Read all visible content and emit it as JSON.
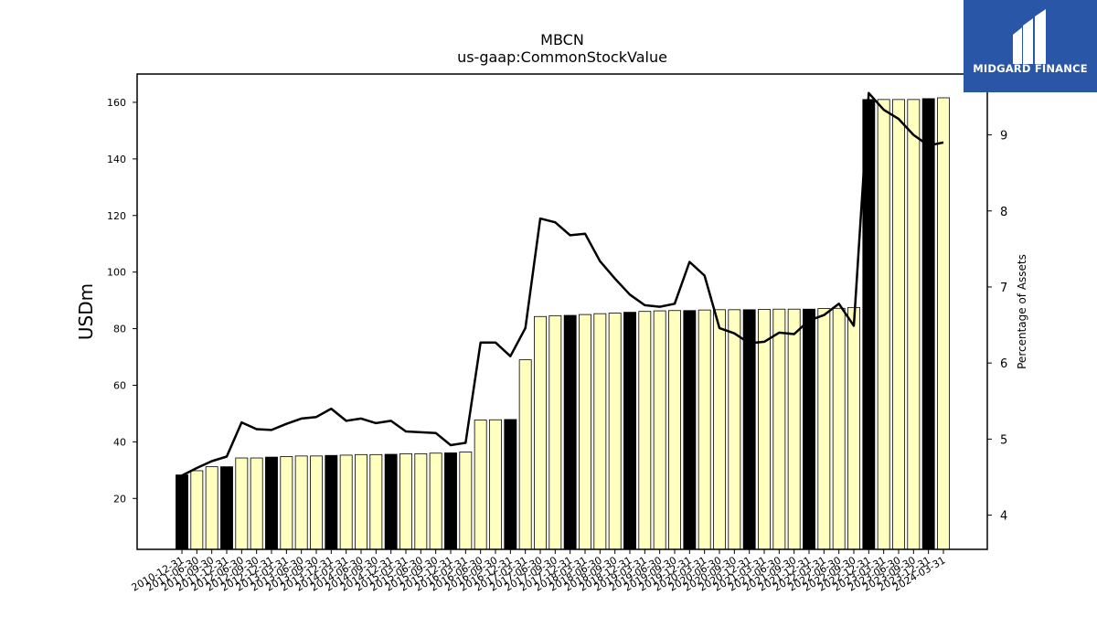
{
  "logo": {
    "text": "MIDGARD FINANCE",
    "icon": "midgard-finance-logo-icon",
    "background": "#2a56a8"
  },
  "chart_data": {
    "type": "bar",
    "title": "MBCN",
    "subtitle": "us-gaap:CommonStockValue",
    "ylabel": "USDm",
    "y2label": "Percentage of Assets",
    "ylim": [
      2,
      170
    ],
    "y2lim": [
      3.55,
      9.8
    ],
    "yticks": [
      20,
      40,
      60,
      80,
      100,
      120,
      140,
      160
    ],
    "y2ticks": [
      4,
      5,
      6,
      7,
      8,
      9
    ],
    "categories": [
      "2010-12-31",
      "2011-06-30",
      "2011-09-30",
      "2011-12-31",
      "2012-06-30",
      "2012-09-30",
      "2012-12-31",
      "2013-03-31",
      "2013-06-30",
      "2013-09-30",
      "2013-12-31",
      "2014-03-31",
      "2014-06-30",
      "2014-09-30",
      "2014-12-31",
      "2015-03-31",
      "2015-06-30",
      "2015-09-30",
      "2015-12-31",
      "2016-03-31",
      "2016-06-30",
      "2016-09-30",
      "2016-12-31",
      "2017-03-31",
      "2017-06-30",
      "2017-09-30",
      "2017-12-31",
      "2018-03-31",
      "2018-06-30",
      "2018-09-30",
      "2018-12-31",
      "2019-03-31",
      "2019-06-30",
      "2019-09-30",
      "2019-12-31",
      "2020-03-31",
      "2020-06-30",
      "2020-09-30",
      "2020-12-31",
      "2021-03-31",
      "2021-06-30",
      "2021-09-30",
      "2021-12-31",
      "2022-03-31",
      "2022-06-30",
      "2022-09-30",
      "2022-12-31",
      "2023-03-31",
      "2023-06-30",
      "2023-09-30",
      "2023-12-31",
      "2024-03-31"
    ],
    "series": [
      {
        "kind": "bar",
        "values": [
          28.3,
          29.8,
          31.2,
          31.2,
          34.3,
          34.3,
          34.6,
          34.8,
          35.0,
          35.0,
          35.2,
          35.3,
          35.5,
          35.5,
          35.6,
          35.8,
          35.8,
          36.0,
          36.1,
          36.4,
          47.7,
          47.8,
          47.9,
          69.0,
          84.3,
          84.6,
          84.7,
          85.0,
          85.3,
          85.5,
          85.8,
          86.1,
          86.3,
          86.4,
          86.4,
          86.6,
          86.7,
          86.7,
          86.7,
          86.8,
          86.9,
          86.9,
          86.9,
          87.1,
          87.2,
          87.5,
          161.0,
          161.0,
          161.0,
          161.0,
          161.3,
          161.6
        ],
        "highlight_color": "#000000",
        "fill_color": "#ffffc0",
        "highlight_indices": [
          0,
          3,
          6,
          10,
          14,
          18,
          22,
          26,
          30,
          34,
          38,
          42,
          46,
          50
        ]
      },
      {
        "kind": "line",
        "axis": "right",
        "color": "#000000",
        "values": [
          4.52,
          4.62,
          4.71,
          4.77,
          5.22,
          5.13,
          5.12,
          5.2,
          5.27,
          5.29,
          5.4,
          5.24,
          5.27,
          5.21,
          5.24,
          5.1,
          5.09,
          5.08,
          4.92,
          4.95,
          6.27,
          6.27,
          6.09,
          6.46,
          7.9,
          7.85,
          7.68,
          7.7,
          7.34,
          7.11,
          6.9,
          6.76,
          6.74,
          6.78,
          7.33,
          7.15,
          6.46,
          6.39,
          6.26,
          6.28,
          6.4,
          6.38,
          6.56,
          6.63,
          6.78,
          6.49,
          9.55,
          9.33,
          9.21,
          9.0,
          8.86,
          8.9
        ]
      }
    ],
    "grid": false,
    "legend": "none"
  }
}
